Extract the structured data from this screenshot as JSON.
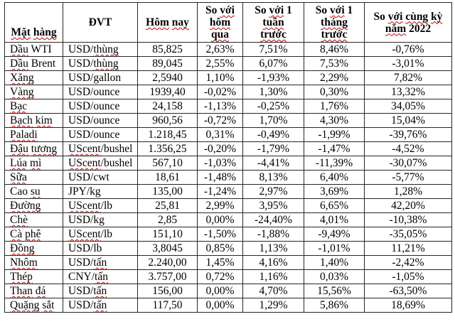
{
  "table": {
    "border_color": "#262626",
    "text_color": "#000000",
    "background": "#ffffff",
    "spellcheck_color": "#c80000",
    "spellcheck_wavy_tokens": [
      "Mặt",
      "hàng",
      "Hôm",
      "nay",
      "với",
      "hôm",
      "qua",
      "tuần",
      "trước",
      "tháng",
      "cùng",
      "kỳ",
      "năm",
      "Dầu",
      "Xăng",
      "Vàng",
      "Bạc",
      "Bạch",
      "kim",
      "Paladi",
      "Đậu",
      "tương",
      "Lúa",
      "mì",
      "Sữa",
      "su",
      "Đường",
      "Chè",
      "Cà",
      "phê",
      "Đồng",
      "Nhôm",
      "Thép",
      "Than",
      "đá",
      "Quặng",
      "sắt",
      "thùng",
      "UScent",
      "tấn"
    ],
    "columns": [
      {
        "key": "name",
        "label": "Mặt hàng",
        "lines": [
          "Mặt hàng"
        ]
      },
      {
        "key": "unit",
        "label": "ĐVT",
        "lines": [
          "ĐVT"
        ]
      },
      {
        "key": "today",
        "label": "Hôm nay",
        "lines": [
          "Hôm nay"
        ]
      },
      {
        "key": "vs_yesterday",
        "label": "So với hôm qua",
        "lines": [
          "So với",
          "hôm",
          "qua"
        ]
      },
      {
        "key": "vs_week",
        "label": "So với 1 tuần trước",
        "lines": [
          "So với 1",
          "tuần",
          "trước"
        ]
      },
      {
        "key": "vs_month",
        "label": "So với 1 tháng trước",
        "lines": [
          "So với 1",
          "tháng",
          "trước"
        ]
      },
      {
        "key": "vs_year2022",
        "label": "So với cùng kỳ năm 2022",
        "lines": [
          "So với cùng kỳ",
          "năm 2022"
        ]
      }
    ],
    "rows": [
      {
        "name": "Dầu WTI",
        "unit": "USD/thùng",
        "today": "85,825",
        "vs_yesterday": "2,63%",
        "vs_week": "7,51%",
        "vs_month": "8,46%",
        "vs_year2022": "-0,76%"
      },
      {
        "name": "Dầu Brent",
        "unit": "USD/thùng",
        "today": "89,045",
        "vs_yesterday": "2,55%",
        "vs_week": "6,07%",
        "vs_month": "7,53%",
        "vs_year2022": "-3,01%"
      },
      {
        "name": "Xăng",
        "unit": "USD/gallon",
        "today": "2,5940",
        "vs_yesterday": "1,10%",
        "vs_week": "-1,93%",
        "vs_month": "2,29%",
        "vs_year2022": "7,82%"
      },
      {
        "name": "Vàng",
        "unit": "USD/ounce",
        "today": "1939,40",
        "vs_yesterday": "-0,02%",
        "vs_week": "1,30%",
        "vs_month": "0,30%",
        "vs_year2022": "13,32%"
      },
      {
        "name": "Bạc",
        "unit": "USD/ounce",
        "today": "24,158",
        "vs_yesterday": "-1,13%",
        "vs_week": "-0,25%",
        "vs_month": "1,76%",
        "vs_year2022": "34,05%"
      },
      {
        "name": "Bạch kim",
        "unit": "USD/ounce",
        "today": "960,56",
        "vs_yesterday": "-0,72%",
        "vs_week": "1,70%",
        "vs_month": "4,30%",
        "vs_year2022": "15,04%"
      },
      {
        "name": "Paladi",
        "unit": "USD/ounce",
        "today": "1.218,45",
        "vs_yesterday": "0,31%",
        "vs_week": "-0,49%",
        "vs_month": "-1,99%",
        "vs_year2022": "-39,76%"
      },
      {
        "name": "Đậu tương",
        "unit": "UScent/bushel",
        "today": "1.356,25",
        "vs_yesterday": "-0,20%",
        "vs_week": "-1,79%",
        "vs_month": "-1,47%",
        "vs_year2022": "-4,52%"
      },
      {
        "name": "Lúa mì",
        "unit": "UScent/bushel",
        "today": "567,10",
        "vs_yesterday": "-1,03%",
        "vs_week": "-4,41%",
        "vs_month": "-11,39%",
        "vs_year2022": "-30,07%"
      },
      {
        "name": "Sữa",
        "unit": "USD/cwt",
        "today": "18,61",
        "vs_yesterday": "-1,48%",
        "vs_week": "8,13%",
        "vs_month": "6,40%",
        "vs_year2022": "-5,77%"
      },
      {
        "name": "Cao su",
        "unit": "JPY/kg",
        "today": "135,00",
        "vs_yesterday": "-1,24%",
        "vs_week": "2,97%",
        "vs_month": "3,69%",
        "vs_year2022": "1,28%"
      },
      {
        "name": "Đường",
        "unit": "UScent/lb",
        "today": "25,81",
        "vs_yesterday": "2,99%",
        "vs_week": "3,95%",
        "vs_month": "6,65%",
        "vs_year2022": "42,20%"
      },
      {
        "name": "Chè",
        "unit": "USD/kg",
        "today": "2,85",
        "vs_yesterday": "0,00%",
        "vs_week": "-24,40%",
        "vs_month": "4,01%",
        "vs_year2022": "-10,38%"
      },
      {
        "name": "Cà phê",
        "unit": "UScent/lb",
        "today": "151,10",
        "vs_yesterday": "-1,50%",
        "vs_week": "-1,88%",
        "vs_month": "-9,49%",
        "vs_year2022": "-35,05%"
      },
      {
        "name": "Đồng",
        "unit": "USD/lb",
        "today": "3,8045",
        "vs_yesterday": "0,85%",
        "vs_week": "1,13%",
        "vs_month": "-1,01%",
        "vs_year2022": "11,21%"
      },
      {
        "name": "Nhôm",
        "unit": "USD/tấn",
        "today": "2.240,00",
        "vs_yesterday": "1,45%",
        "vs_week": "4,16%",
        "vs_month": "1,40%",
        "vs_year2022": "-2,42%"
      },
      {
        "name": "Thép",
        "unit": "CNY/tấn",
        "today": "3.757,00",
        "vs_yesterday": "0,72%",
        "vs_week": "1,16%",
        "vs_month": "0,03%",
        "vs_year2022": "-1,05%"
      },
      {
        "name": "Than đá",
        "unit": "USD/tấn",
        "today": "156,00",
        "vs_yesterday": "0,00%",
        "vs_week": "4,70%",
        "vs_month": "15,56%",
        "vs_year2022": "-63,50%"
      },
      {
        "name": "Quặng sắt",
        "unit": "USD/tấn",
        "today": "117,50",
        "vs_yesterday": "0,00%",
        "vs_week": "1,29%",
        "vs_month": "5,86%",
        "vs_year2022": "18,69%"
      }
    ]
  }
}
